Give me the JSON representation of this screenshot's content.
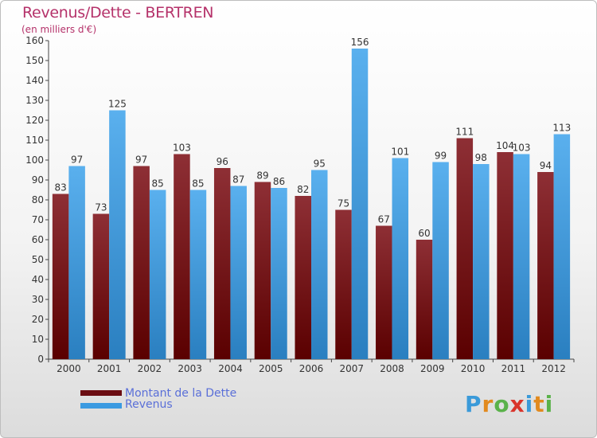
{
  "title": "Revenus/Dette - BERTREN",
  "subtitle": "(en milliers d'€)",
  "legend": {
    "items": [
      {
        "label": "Montant de la Dette",
        "color": "#6b0d12"
      },
      {
        "label": "Revenus",
        "color": "#3b9ae1"
      }
    ]
  },
  "logo": {
    "text": "Proxiti",
    "letters": [
      {
        "ch": "P",
        "color": "#3a9ad9"
      },
      {
        "ch": "r",
        "color": "#e28a1e"
      },
      {
        "ch": "o",
        "color": "#5ab24a"
      },
      {
        "ch": "x",
        "color": "#d9342b"
      },
      {
        "ch": "i",
        "color": "#3a9ad9"
      },
      {
        "ch": "t",
        "color": "#e28a1e"
      },
      {
        "ch": "i",
        "color": "#5ab24a"
      }
    ]
  },
  "chart_data": {
    "type": "bar",
    "categories": [
      "2000",
      "2001",
      "2002",
      "2003",
      "2004",
      "2005",
      "2006",
      "2007",
      "2008",
      "2009",
      "2010",
      "2011",
      "2012"
    ],
    "series": [
      {
        "name": "Montant de la Dette",
        "color": "#6b0d12",
        "values": [
          83,
          73,
          97,
          103,
          96,
          89,
          82,
          75,
          67,
          60,
          111,
          104,
          94
        ]
      },
      {
        "name": "Revenus",
        "color": "#3b9ae1",
        "values": [
          97,
          125,
          85,
          85,
          87,
          86,
          95,
          156,
          101,
          99,
          98,
          103,
          113
        ]
      }
    ],
    "ylim": [
      0,
      160
    ],
    "ytick_step": 10,
    "grid": false,
    "legend_position": "bottom-left"
  }
}
